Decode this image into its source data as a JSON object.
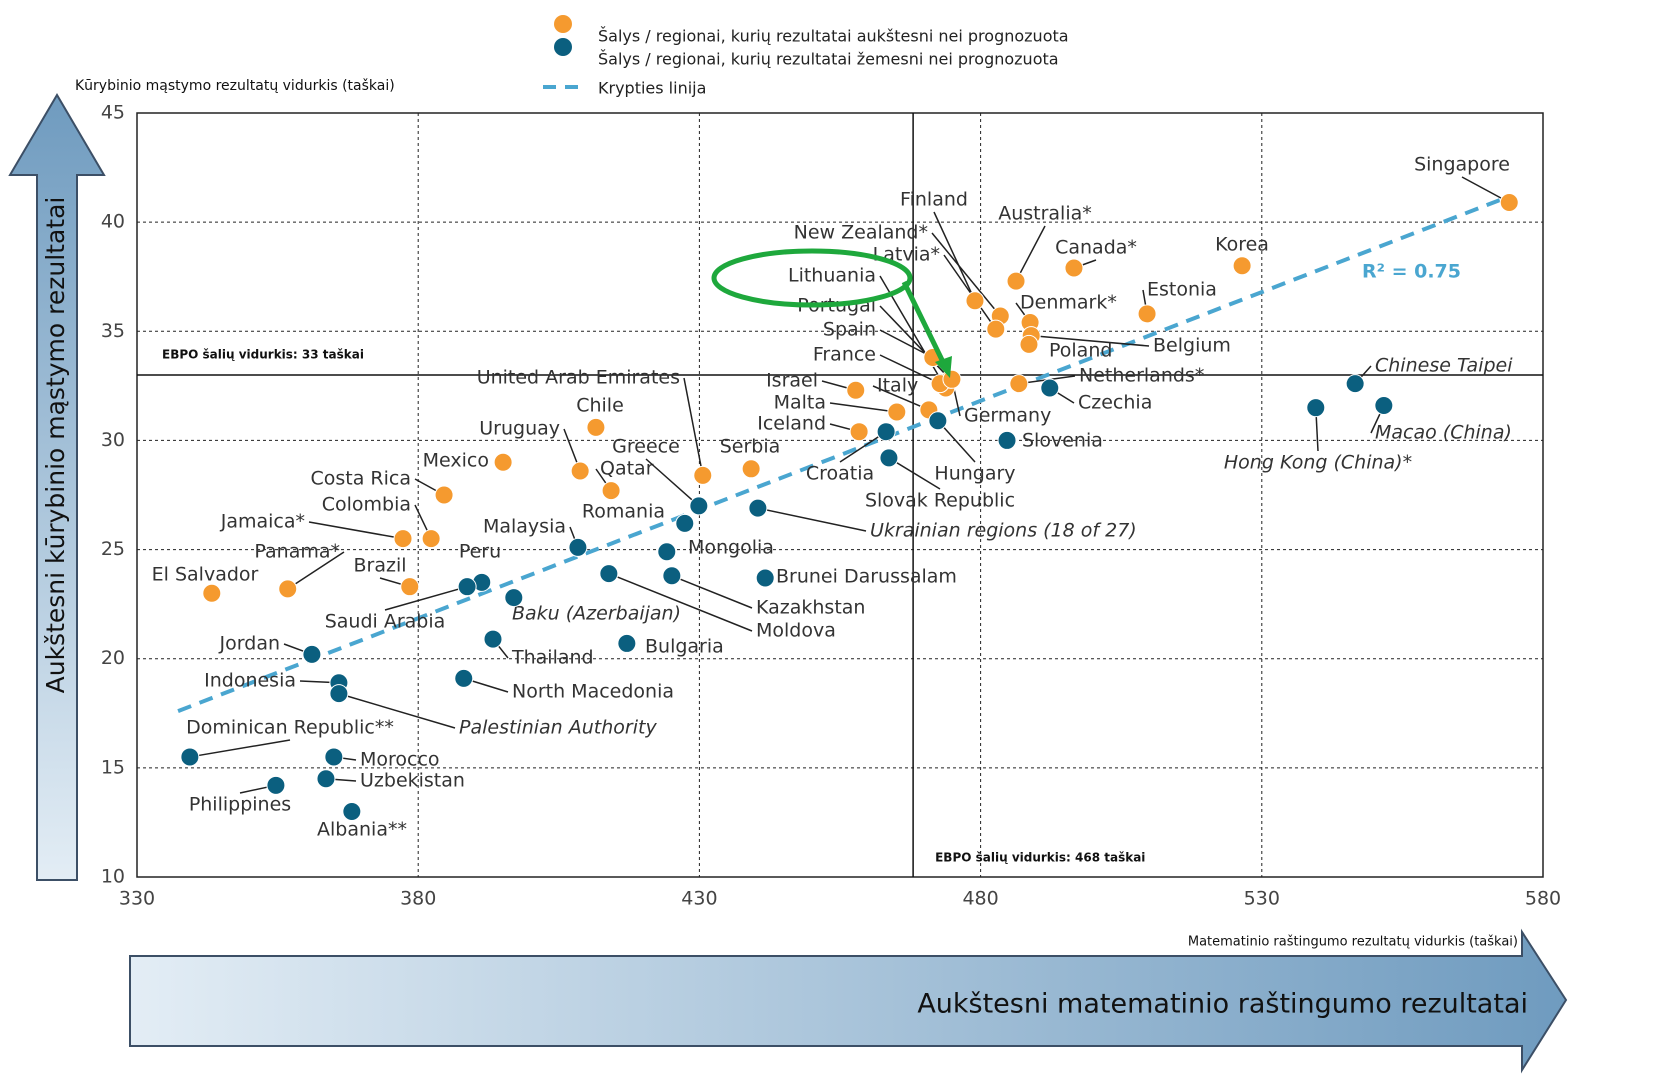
{
  "chart_data": {
    "type": "scatter",
    "ylabel": "Kūrybinio mąstymo rezultatų vidurkis (taškai)",
    "xlabel": "Matematinio raštingumo rezultatų vidurkis (taškai)",
    "y_arrow_label": "Aukštesni kūrybinio mąstymo rezultatai",
    "x_arrow_label": "Aukštesni matematinio raštingumo rezultatai",
    "xlim": [
      330,
      580
    ],
    "xticks": [
      330,
      380,
      430,
      480,
      530,
      580
    ],
    "ylim": [
      10,
      45
    ],
    "yticks": [
      10,
      15,
      20,
      25,
      30,
      35,
      40,
      45
    ],
    "grid": true,
    "series": [
      {
        "name": "Šalys / regionai, kurių rezultatai aukštesni nei prognozuota",
        "color": "#f59a2f",
        "labels": [
          "Singapore",
          "Korea",
          "Canada*",
          "Estonia",
          "Australia*",
          "Finland",
          "New Zealand*",
          "Latvia*",
          "Denmark*",
          "Belgium",
          "Poland",
          "Netherlands*",
          "Lithuania",
          "Portugal",
          "Spain",
          "France",
          "Israel",
          "Italy",
          "Germany",
          "Malta",
          "Iceland",
          "Chile",
          "Uruguay",
          "Mexico",
          "Serbia",
          "Qatar",
          "United Arab Emirates",
          "Costa Rica",
          "Colombia",
          "Jamaica*",
          "Panama*",
          "Brazil",
          "El Salvador"
        ],
        "x": [
          574,
          526.5,
          496.6,
          509.6,
          486.3,
          479,
          483.5,
          482.7,
          488.8,
          489,
          488.6,
          486.8,
          473.8,
          474.6,
          471.5,
          472.8,
          457.8,
          470.8,
          474.9,
          465.1,
          458.4,
          411.6,
          408.8,
          395.1,
          439.2,
          414.3,
          430.6,
          384.6,
          382.3,
          377.3,
          356.8,
          378.5,
          343.3
        ],
        "values": [
          40.9,
          38.0,
          37.9,
          35.8,
          37.3,
          36.4,
          35.7,
          35.1,
          35.4,
          34.8,
          34.4,
          32.6,
          32.4,
          32.8,
          33.8,
          32.6,
          32.3,
          31.4,
          32.8,
          31.3,
          30.4,
          30.6,
          28.6,
          29.0,
          28.7,
          27.7,
          28.4,
          27.5,
          25.5,
          25.5,
          23.2,
          23.3,
          23.0
        ]
      },
      {
        "name": "Šalys / regionai, kurių rezultatai žemesni nei prognozuota",
        "color": "#0b5f7f",
        "labels": [
          "Chinese Taipei",
          "Macao (China)",
          "Hong Kong (China)*",
          "Czechia",
          "Slovenia",
          "Hungary",
          "Croatia",
          "Slovak Republic",
          "Ukrainian regions (18 of 27)",
          "Greece",
          "Romania",
          "Mongolia",
          "Brunei Darussalam",
          "Kazakhstan",
          "Moldova",
          "Malaysia",
          "Peru",
          "Saudi Arabia",
          "Baku (Azerbaijan)",
          "Thailand",
          "Bulgaria",
          "North Macedonia",
          "Jordan",
          "Indonesia",
          "Palestinian Authority",
          "Dominican Republic**",
          "Morocco",
          "Uzbekistan",
          "Philippines",
          "Albania**"
        ],
        "x": [
          546.6,
          551.7,
          539.6,
          492.3,
          484.7,
          472.4,
          463.2,
          463.7,
          440.4,
          429.9,
          427.4,
          424.2,
          441.7,
          425.1,
          413.9,
          408.4,
          391.3,
          388.7,
          397.0,
          393.3,
          417.1,
          388.1,
          361.1,
          365.9,
          365.9,
          339.4,
          365.0,
          363.6,
          354.7,
          368.2
        ],
        "values": [
          32.6,
          31.6,
          31.5,
          32.4,
          30.0,
          30.9,
          30.4,
          29.2,
          26.9,
          27.0,
          26.2,
          24.9,
          23.7,
          23.8,
          23.9,
          25.1,
          23.5,
          23.3,
          22.8,
          20.9,
          20.7,
          19.1,
          20.2,
          18.9,
          18.4,
          15.5,
          15.5,
          14.5,
          14.2,
          13.0
        ]
      }
    ],
    "trend_line": {
      "name": "Krypties linija",
      "color": "#4aa6d0",
      "x": [
        337.3,
        573.2
      ],
      "y": [
        17.6,
        41.1
      ],
      "label": "R² = 0.75"
    },
    "reference_lines": [
      {
        "axis": "y",
        "value": 33,
        "label": "EBPO šalių vidurkis: 33 taškai"
      },
      {
        "axis": "x",
        "value": 468,
        "label": "EBPO šalių vidurkis: 468 taškai"
      }
    ]
  }
}
